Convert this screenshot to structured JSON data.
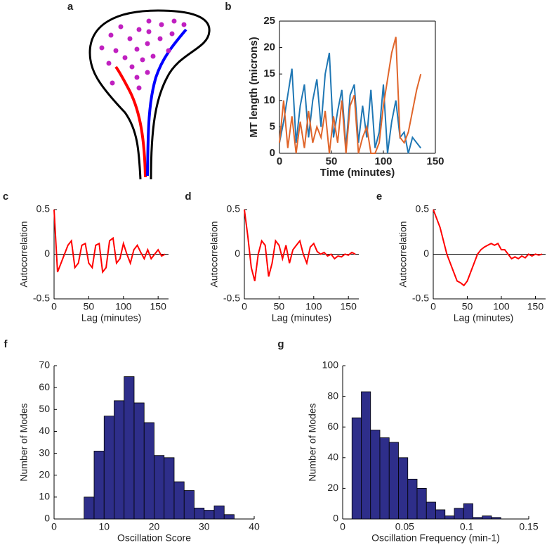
{
  "chart_data": [
    {
      "type": "diagram",
      "panel_label": "a"
    },
    {
      "type": "line",
      "panel_label": "b",
      "xlabel": "Time (minutes)",
      "ylabel": "MT length (microns)",
      "xlim": [
        0,
        150
      ],
      "ylim": [
        0,
        25
      ],
      "xticks": [
        0,
        50,
        100,
        150
      ],
      "yticks": [
        0,
        5,
        10,
        15,
        20,
        25
      ],
      "x": [
        0,
        4,
        8,
        12,
        16,
        20,
        24,
        28,
        32,
        36,
        40,
        44,
        48,
        52,
        56,
        60,
        64,
        68,
        72,
        76,
        80,
        84,
        88,
        92,
        96,
        100,
        104,
        108,
        112,
        116,
        120,
        124,
        128,
        132,
        136
      ],
      "series": [
        {
          "color": "#1f77b4",
          "values": [
            2,
            6,
            11,
            16,
            2,
            9,
            13,
            3,
            10,
            14,
            5,
            15,
            19,
            3,
            8,
            12,
            1,
            11,
            13,
            2,
            9,
            3,
            12,
            1,
            4,
            13,
            0,
            6,
            10,
            3,
            4,
            0,
            3,
            2,
            1
          ]
        },
        {
          "color": "#e0652a",
          "values": [
            2,
            10,
            1,
            7,
            0,
            6,
            1,
            8,
            2,
            5,
            3,
            8,
            0,
            7,
            2,
            10,
            0,
            9,
            11,
            0,
            3,
            5,
            0,
            0,
            2,
            9,
            14,
            19,
            22,
            3,
            2,
            4,
            8,
            12,
            15
          ]
        }
      ]
    },
    {
      "type": "line",
      "panel_label": "c",
      "xlabel": "Lag (minutes)",
      "ylabel": "Autocorrelation",
      "xlim": [
        0,
        165
      ],
      "ylim": [
        -0.5,
        0.5
      ],
      "xticks": [
        0,
        50,
        100,
        150
      ],
      "yticks": [
        -0.5,
        0,
        0.5
      ],
      "color": "#ff0000",
      "x": [
        0,
        5,
        10,
        15,
        20,
        25,
        30,
        35,
        40,
        45,
        50,
        55,
        60,
        65,
        70,
        75,
        80,
        85,
        90,
        95,
        100,
        105,
        110,
        115,
        120,
        125,
        130,
        135,
        140,
        145,
        150,
        155,
        160
      ],
      "values": [
        0.5,
        -0.2,
        -0.1,
        0.0,
        0.1,
        0.15,
        -0.15,
        -0.1,
        0.1,
        0.12,
        -0.1,
        -0.15,
        0.1,
        0.12,
        -0.2,
        -0.15,
        0.15,
        0.18,
        -0.1,
        -0.05,
        0.12,
        0.0,
        -0.1,
        0.05,
        0.1,
        0.02,
        -0.05,
        0.05,
        -0.05,
        0.0,
        0.05,
        -0.02,
        0.0
      ]
    },
    {
      "type": "line",
      "panel_label": "d",
      "xlabel": "Lag (minutes)",
      "ylabel": "Autocorrelation",
      "xlim": [
        0,
        165
      ],
      "ylim": [
        -0.5,
        0.5
      ],
      "xticks": [
        0,
        50,
        100,
        150
      ],
      "yticks": [
        -0.5,
        0,
        0.5
      ],
      "color": "#ff0000",
      "x": [
        0,
        5,
        10,
        15,
        20,
        25,
        30,
        35,
        40,
        45,
        50,
        55,
        60,
        65,
        70,
        75,
        80,
        85,
        90,
        95,
        100,
        105,
        110,
        115,
        120,
        125,
        130,
        135,
        140,
        145,
        150,
        155,
        160
      ],
      "values": [
        0.5,
        0.2,
        -0.15,
        -0.3,
        0.0,
        0.15,
        0.1,
        -0.25,
        -0.1,
        0.15,
        0.1,
        -0.05,
        0.1,
        -0.1,
        0.05,
        0.1,
        0.15,
        0.0,
        -0.1,
        0.08,
        0.12,
        0.03,
        0.0,
        0.02,
        -0.02,
        0.0,
        -0.05,
        -0.02,
        -0.03,
        0.0,
        -0.01,
        0.02,
        0.0
      ]
    },
    {
      "type": "line",
      "panel_label": "e",
      "xlabel": "Lag (minutes)",
      "ylabel": "Autocorrelation",
      "xlim": [
        0,
        165
      ],
      "ylim": [
        -0.5,
        0.5
      ],
      "xticks": [
        0,
        50,
        100,
        150
      ],
      "yticks": [
        -0.5,
        0,
        0.5
      ],
      "color": "#ff0000",
      "x": [
        0,
        5,
        10,
        15,
        20,
        25,
        30,
        35,
        40,
        45,
        50,
        55,
        60,
        65,
        70,
        75,
        80,
        85,
        90,
        95,
        100,
        105,
        110,
        115,
        120,
        125,
        130,
        135,
        140,
        145,
        150,
        155,
        160
      ],
      "values": [
        0.5,
        0.4,
        0.3,
        0.15,
        0.0,
        -0.1,
        -0.2,
        -0.3,
        -0.32,
        -0.35,
        -0.3,
        -0.2,
        -0.1,
        0.0,
        0.05,
        0.08,
        0.1,
        0.12,
        0.1,
        0.12,
        0.05,
        0.05,
        0.0,
        -0.05,
        -0.03,
        -0.05,
        -0.02,
        -0.04,
        0.0,
        -0.02,
        0.0,
        -0.01,
        0.0
      ]
    },
    {
      "type": "histogram",
      "panel_label": "f",
      "xlabel": "Oscillation Score",
      "ylabel": "Number of Modes",
      "xlim": [
        0,
        40
      ],
      "ylim": [
        0,
        70
      ],
      "xticks": [
        0,
        10,
        20,
        30,
        40
      ],
      "yticks": [
        0,
        10,
        20,
        30,
        40,
        50,
        60,
        70
      ],
      "color": "#2e2e8a",
      "bins": [
        6,
        8,
        10,
        12,
        14,
        16,
        18,
        20,
        22,
        24,
        26,
        28,
        30,
        32,
        34,
        36
      ],
      "values": [
        10,
        31,
        47,
        54,
        65,
        53,
        44,
        29,
        28,
        17,
        13,
        5,
        4,
        6,
        2
      ]
    },
    {
      "type": "histogram",
      "panel_label": "g",
      "xlabel": "Oscillation Frequency (min-1)",
      "ylabel": "Number of Modes",
      "xlim": [
        0,
        0.15
      ],
      "ylim": [
        0,
        100
      ],
      "xticks": [
        0,
        0.05,
        0.1,
        0.15
      ],
      "yticks": [
        0,
        20,
        40,
        60,
        80,
        100
      ],
      "color": "#2e2e8a",
      "bins": [
        0.0075,
        0.015,
        0.0225,
        0.03,
        0.0375,
        0.045,
        0.0525,
        0.06,
        0.0675,
        0.075,
        0.0825,
        0.09,
        0.0975,
        0.105,
        0.1125,
        0.12,
        0.1275
      ],
      "values": [
        66,
        83,
        58,
        53,
        50,
        40,
        26,
        20,
        11,
        6,
        2,
        7,
        10,
        1,
        2,
        1
      ]
    }
  ]
}
